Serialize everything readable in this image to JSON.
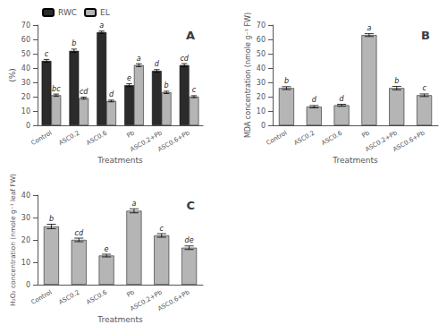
{
  "chart_data": [
    {
      "type": "bar",
      "title": "A",
      "categories": [
        "Control",
        "ASC0.2",
        "ASC0.6",
        "Pb",
        "ASC0.2+Pb",
        "ASC0.6+Pb"
      ],
      "xlabel": "Treatments",
      "ylabel": "(%)",
      "series": [
        {
          "name": "RWC",
          "color": "#2b2b2b",
          "values": [
            45,
            52,
            65,
            28,
            38,
            42
          ],
          "errors": [
            1.0,
            1.2,
            0.8,
            1.0,
            0.9,
            1.1
          ],
          "annotations": [
            "c",
            "b",
            "a",
            "e",
            "d",
            "cd"
          ]
        },
        {
          "name": "EL",
          "color": "#b5b5b5",
          "values": [
            21,
            19,
            17,
            42,
            23,
            20
          ],
          "errors": [
            0.8,
            0.7,
            0.6,
            1.0,
            0.8,
            0.7
          ],
          "annotations": [
            "bc",
            "cd",
            "d",
            "a",
            "b",
            "c"
          ]
        }
      ],
      "ylim": [
        0,
        70
      ],
      "yticks": [
        0,
        10,
        20,
        30,
        40,
        50,
        60,
        70
      ],
      "grid": false,
      "legend": "upper left"
    },
    {
      "type": "bar",
      "title": "B",
      "categories": [
        "Control",
        "ASC0.2",
        "ASC0.6",
        "Pb",
        "ASC0.2+Pb",
        "ASC0.6+Pb"
      ],
      "xlabel": "Treatments",
      "ylabel": "MDA concentration (nmole g⁻¹ FW)",
      "series": [
        {
          "name": "MDA",
          "color": "#b5b5b5",
          "values": [
            26,
            13,
            14,
            63,
            26,
            21
          ],
          "errors": [
            1.0,
            0.8,
            0.7,
            1.0,
            1.2,
            0.9
          ],
          "annotations": [
            "b",
            "d",
            "d",
            "a",
            "b",
            "c"
          ]
        }
      ],
      "ylim": [
        0,
        70
      ],
      "yticks": [
        0,
        10,
        20,
        30,
        40,
        50,
        60,
        70
      ],
      "grid": false
    },
    {
      "type": "bar",
      "title": "C",
      "categories": [
        "Control",
        "ASC0.2",
        "ASC0.6",
        "Pb",
        "ASC0.2+Pb",
        "ASC0.6+Pb"
      ],
      "xlabel": "Treatments",
      "ylabel": "H₂O₂ concentration (nmole g⁻¹ leaf FW)",
      "series": [
        {
          "name": "H₂O₂",
          "color": "#b5b5b5",
          "values": [
            26,
            20,
            13,
            33,
            22,
            16.5
          ],
          "errors": [
            1.0,
            0.8,
            0.6,
            0.9,
            0.8,
            0.8
          ],
          "annotations": [
            "b",
            "cd",
            "e",
            "a",
            "c",
            "de"
          ]
        }
      ],
      "ylim": [
        0,
        40
      ],
      "yticks": [
        0,
        10,
        20,
        30,
        40
      ],
      "grid": false
    }
  ]
}
